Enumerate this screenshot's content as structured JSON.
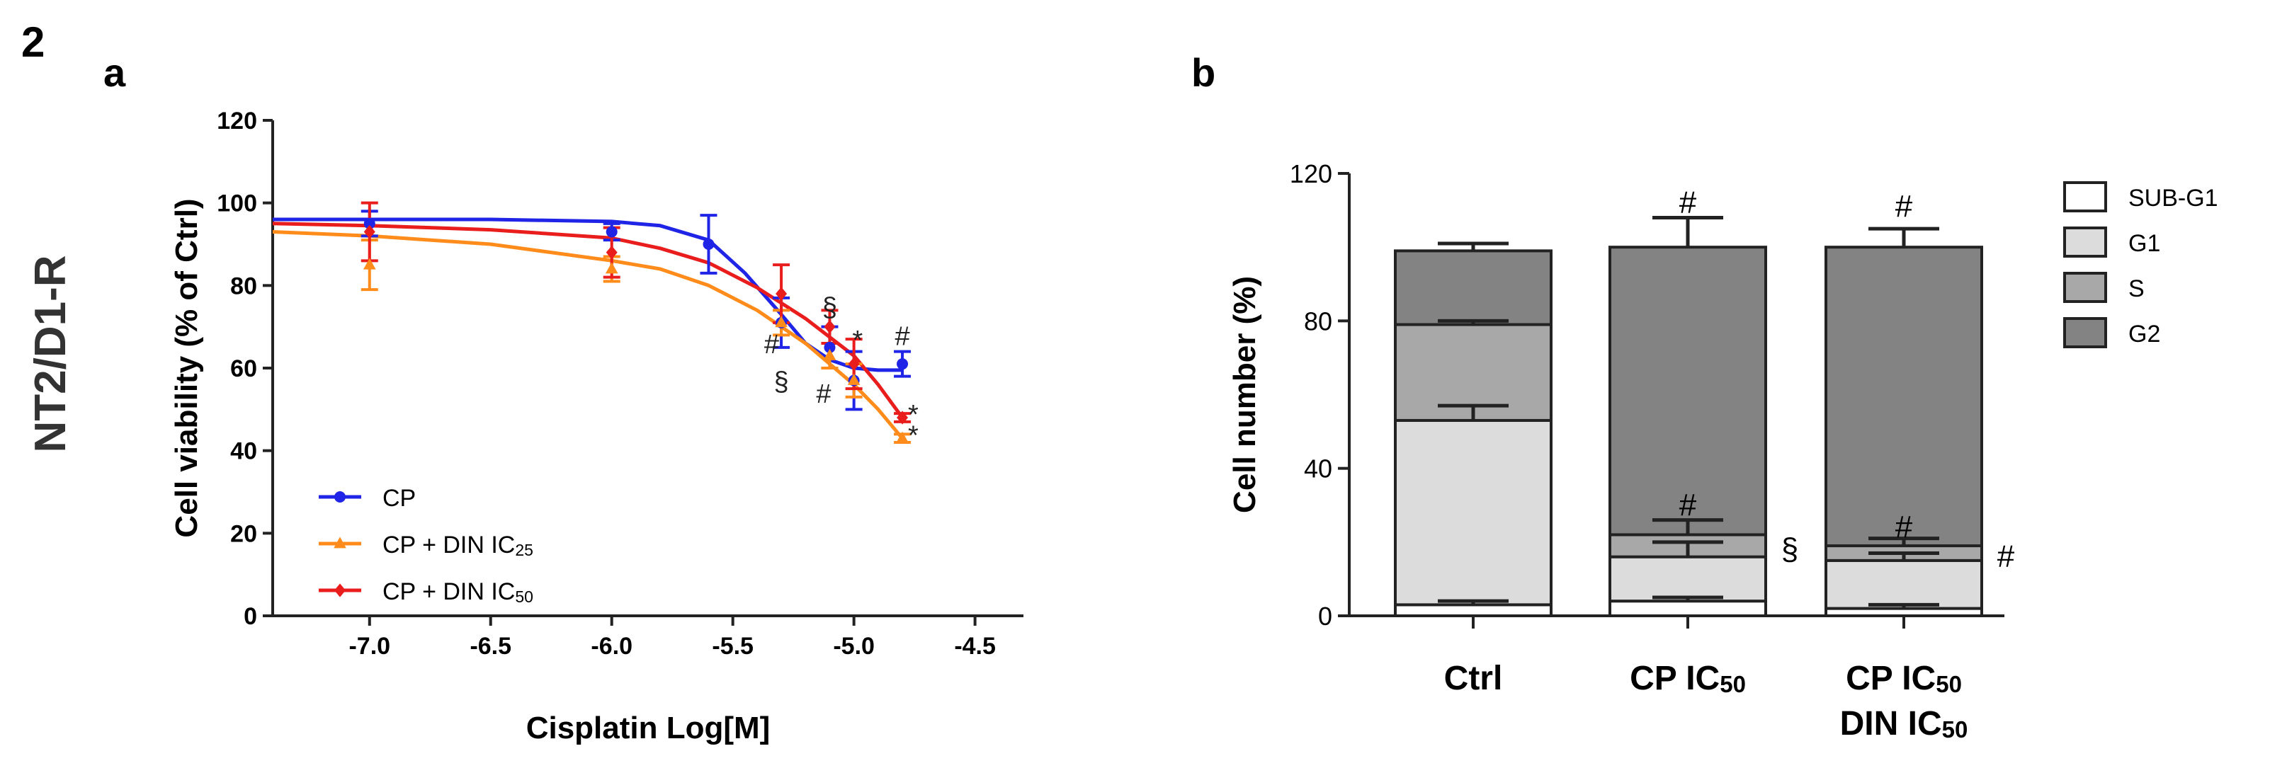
{
  "figure": {
    "number": "2",
    "side_label": "NT2/D1-R"
  },
  "colors": {
    "cp": "#1f24e6",
    "din25": "#ff8c1a",
    "din50": "#ea1d1d",
    "subg1": "#ffffff",
    "g1": "#dcdcdc",
    "s": "#a8a8a8",
    "g2": "#838383",
    "axis": "#222222"
  },
  "chart_data": [
    {
      "panel": "a",
      "type": "line",
      "title": "",
      "xlabel": "Cisplatin Log[M]",
      "ylabel": "Cell viability (% of Ctrl)",
      "xlim": [
        -7.4,
        -4.3
      ],
      "ylim": [
        0,
        120
      ],
      "xticks": [
        -7.0,
        -6.5,
        -6.0,
        -5.5,
        -5.0,
        -4.5
      ],
      "xtick_labels": [
        "-7.0",
        "-6.5",
        "-6.0",
        "-5.5",
        "-5.0",
        "-4.5"
      ],
      "yticks": [
        0,
        20,
        40,
        60,
        80,
        100,
        120
      ],
      "ytick_labels": [
        "0",
        "20",
        "40",
        "60",
        "80",
        "100",
        "120"
      ],
      "legend_position": "bottom-left",
      "series": [
        {
          "name": "CP",
          "legend_label": "CP",
          "legend_sub": "",
          "color_key": "cp",
          "marker": "circle",
          "points": [
            {
              "x": -7.0,
              "y": 95,
              "err": 3
            },
            {
              "x": -6.0,
              "y": 93,
              "err": 2
            },
            {
              "x": -5.6,
              "y": 90,
              "err": 7
            },
            {
              "x": -5.3,
              "y": 71,
              "err": 6
            },
            {
              "x": -5.1,
              "y": 65,
              "err": 5
            },
            {
              "x": -5.0,
              "y": 57,
              "err": 7
            },
            {
              "x": -4.8,
              "y": 61,
              "err": 3
            }
          ],
          "curve": [
            [
              -7.4,
              96
            ],
            [
              -6.5,
              96
            ],
            [
              -6.0,
              95.5
            ],
            [
              -5.8,
              94.5
            ],
            [
              -5.6,
              91
            ],
            [
              -5.45,
              83
            ],
            [
              -5.3,
              73
            ],
            [
              -5.2,
              66
            ],
            [
              -5.1,
              62
            ],
            [
              -5.0,
              60
            ],
            [
              -4.9,
              59.5
            ],
            [
              -4.8,
              59.5
            ]
          ]
        },
        {
          "name": "CP + DIN IC25",
          "legend_label": "CP + DIN IC",
          "legend_sub": "25",
          "color_key": "din25",
          "marker": "triangle",
          "points": [
            {
              "x": -7.0,
              "y": 85,
              "err": 6
            },
            {
              "x": -6.0,
              "y": 84,
              "err": 3
            },
            {
              "x": -5.3,
              "y": 71,
              "err": 3
            },
            {
              "x": -5.1,
              "y": 63,
              "err": 3
            },
            {
              "x": -5.0,
              "y": 57,
              "err": 4
            },
            {
              "x": -4.8,
              "y": 43,
              "err": 1
            }
          ],
          "curve": [
            [
              -7.4,
              93
            ],
            [
              -7.0,
              92
            ],
            [
              -6.5,
              90
            ],
            [
              -6.0,
              86
            ],
            [
              -5.8,
              84
            ],
            [
              -5.6,
              80
            ],
            [
              -5.4,
              74
            ],
            [
              -5.2,
              66
            ],
            [
              -5.0,
              56
            ],
            [
              -4.9,
              50
            ],
            [
              -4.8,
              43
            ]
          ]
        },
        {
          "name": "CP + DIN IC50",
          "legend_label": "CP + DIN IC",
          "legend_sub": "50",
          "color_key": "din50",
          "marker": "diamond",
          "points": [
            {
              "x": -7.0,
              "y": 93,
              "err": 7
            },
            {
              "x": -6.0,
              "y": 88,
              "err": 6
            },
            {
              "x": -5.3,
              "y": 78,
              "err": 7
            },
            {
              "x": -5.1,
              "y": 70,
              "err": 4
            },
            {
              "x": -5.0,
              "y": 61,
              "err": 6
            },
            {
              "x": -4.8,
              "y": 48,
              "err": 1
            }
          ],
          "curve": [
            [
              -7.4,
              95
            ],
            [
              -7.0,
              94.5
            ],
            [
              -6.5,
              93.5
            ],
            [
              -6.0,
              91.5
            ],
            [
              -5.8,
              89
            ],
            [
              -5.6,
              85.5
            ],
            [
              -5.4,
              79.5
            ],
            [
              -5.2,
              72
            ],
            [
              -5.0,
              63
            ],
            [
              -4.9,
              56
            ],
            [
              -4.8,
              48
            ]
          ]
        }
      ],
      "annotations": [
        {
          "text": "§",
          "x": -5.1,
          "y": 75
        },
        {
          "text": "*",
          "x": -4.985,
          "y": 67
        },
        {
          "text": "#",
          "x": -4.8,
          "y": 68
        },
        {
          "text": "#",
          "x": -5.34,
          "y": 66
        },
        {
          "text": "§",
          "x": -5.3,
          "y": 57
        },
        {
          "text": "#",
          "x": -5.125,
          "y": 54
        },
        {
          "text": "*",
          "x": -4.755,
          "y": 49
        },
        {
          "text": "*",
          "x": -4.755,
          "y": 44
        }
      ]
    },
    {
      "panel": "b",
      "type": "bar",
      "stacked": true,
      "title": "",
      "xlabel": "",
      "ylabel": "Cell number (%)",
      "ylim": [
        0,
        120
      ],
      "yticks": [
        0,
        40,
        80,
        120
      ],
      "ytick_labels": [
        "0",
        "40",
        "80",
        "120"
      ],
      "legend_position": "right",
      "categories": [
        {
          "lines": [
            {
              "text": "Ctrl",
              "sub": ""
            }
          ]
        },
        {
          "lines": [
            {
              "text": "CP IC",
              "sub": "50"
            }
          ]
        },
        {
          "lines": [
            {
              "text": "CP IC",
              "sub": "50"
            },
            {
              "text": "DIN IC",
              "sub": "50"
            }
          ]
        }
      ],
      "series": [
        {
          "name": "SUB-G1",
          "color_key": "subg1",
          "values": [
            3,
            4,
            2
          ],
          "errors": [
            1,
            1,
            1
          ]
        },
        {
          "name": "G1",
          "color_key": "g1",
          "values": [
            50,
            12,
            13
          ],
          "errors": [
            4,
            4,
            2
          ]
        },
        {
          "name": "S",
          "color_key": "s",
          "values": [
            26,
            6,
            4
          ],
          "errors": [
            1,
            4,
            2
          ]
        },
        {
          "name": "G2",
          "color_key": "g2",
          "values": [
            20,
            78,
            81
          ],
          "errors": [
            2,
            8,
            5
          ]
        }
      ],
      "annotations": [
        {
          "text": "#",
          "category": 1,
          "y": 112,
          "side": "center"
        },
        {
          "text": "#",
          "category": 1,
          "y": 30,
          "side": "center"
        },
        {
          "text": "§",
          "category": 1,
          "y": 18,
          "side": "right"
        },
        {
          "text": "#",
          "category": 2,
          "y": 111,
          "side": "center"
        },
        {
          "text": "#",
          "category": 2,
          "y": 24,
          "side": "center"
        },
        {
          "text": "#",
          "category": 2,
          "y": 16,
          "side": "right"
        }
      ]
    }
  ]
}
